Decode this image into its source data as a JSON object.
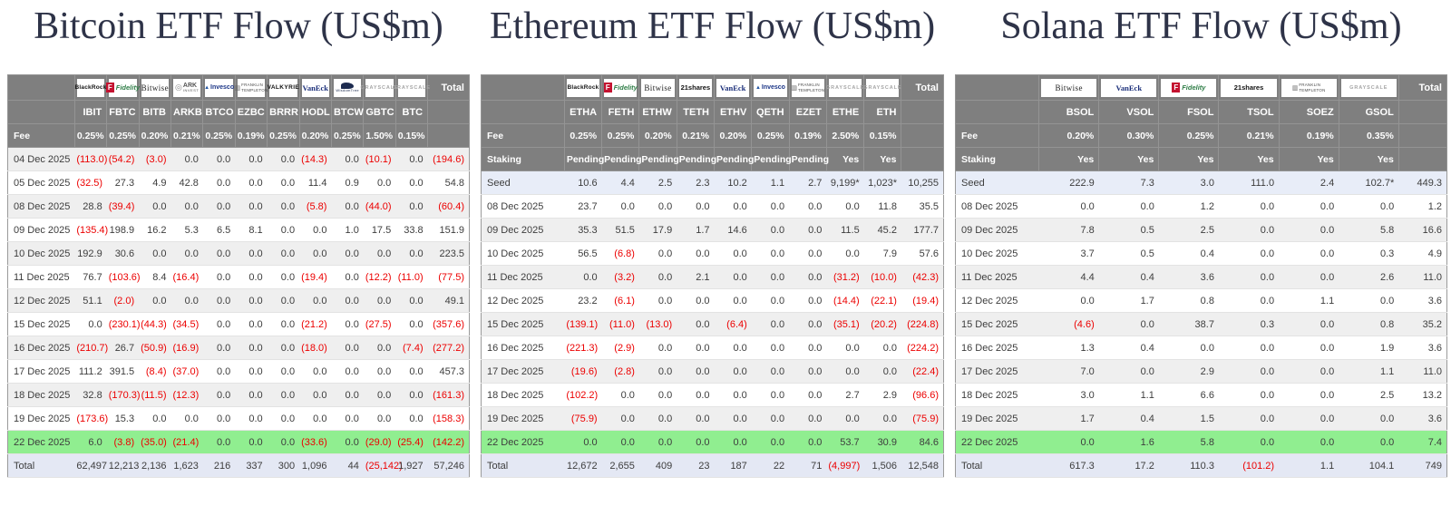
{
  "colors": {
    "title_text": "#2e3348",
    "header_bg": "#7f7f7f",
    "header_text": "#ffffff",
    "negative_value": "#ec0000",
    "highlight_row_green": "#90ee90",
    "seed_row_blue": "#e8edf8",
    "total_row_lavender": "#e4e8f4",
    "alt_row_gray": "#efefef"
  },
  "chart_data": [
    {
      "type": "table",
      "title": "Bitcoin ETF Flow (US$m)",
      "issuers": [
        {
          "key": "blackrock",
          "label": "BlackRock"
        },
        {
          "key": "fidelity",
          "label": "Fidelity"
        },
        {
          "key": "bitwise",
          "label": "Bitwise"
        },
        {
          "key": "ark",
          "label": "ARK Invest"
        },
        {
          "key": "invesco",
          "label": "Invesco"
        },
        {
          "key": "franklin",
          "label": "Franklin Templeton"
        },
        {
          "key": "valkyrie",
          "label": "VALKYRIE"
        },
        {
          "key": "vaneck",
          "label": "VanEck"
        },
        {
          "key": "wisdomtree",
          "label": "WisdomTree"
        },
        {
          "key": "grayscale",
          "label": "GRAYSCALE"
        },
        {
          "key": "grayscale",
          "label": "GRAYSCALE"
        }
      ],
      "total_label": "Total",
      "tickers": [
        "IBIT",
        "FBTC",
        "BITB",
        "ARKB",
        "BTCO",
        "EZBC",
        "BRRR",
        "HODL",
        "BTCW",
        "GBTC",
        "BTC"
      ],
      "fee_label": "Fee",
      "fees": [
        "0.25%",
        "0.25%",
        "0.20%",
        "0.21%",
        "0.25%",
        "0.19%",
        "0.25%",
        "0.20%",
        "0.25%",
        "1.50%",
        "0.15%"
      ],
      "rows": [
        {
          "label": "04 Dec 2025",
          "values": [
            "(113.0)",
            "(54.2)",
            "(3.0)",
            "0.0",
            "0.0",
            "0.0",
            "0.0",
            "(14.3)",
            "0.0",
            "(10.1)",
            "0.0"
          ],
          "total": "(194.6)"
        },
        {
          "label": "05 Dec 2025",
          "values": [
            "(32.5)",
            "27.3",
            "4.9",
            "42.8",
            "0.0",
            "0.0",
            "0.0",
            "11.4",
            "0.9",
            "0.0",
            "0.0"
          ],
          "total": "54.8"
        },
        {
          "label": "08 Dec 2025",
          "values": [
            "28.8",
            "(39.4)",
            "0.0",
            "0.0",
            "0.0",
            "0.0",
            "0.0",
            "(5.8)",
            "0.0",
            "(44.0)",
            "0.0"
          ],
          "total": "(60.4)"
        },
        {
          "label": "09 Dec 2025",
          "values": [
            "(135.4)",
            "198.9",
            "16.2",
            "5.3",
            "6.5",
            "8.1",
            "0.0",
            "0.0",
            "1.0",
            "17.5",
            "33.8"
          ],
          "total": "151.9"
        },
        {
          "label": "10 Dec 2025",
          "values": [
            "192.9",
            "30.6",
            "0.0",
            "0.0",
            "0.0",
            "0.0",
            "0.0",
            "0.0",
            "0.0",
            "0.0",
            "0.0"
          ],
          "total": "223.5"
        },
        {
          "label": "11 Dec 2025",
          "values": [
            "76.7",
            "(103.6)",
            "8.4",
            "(16.4)",
            "0.0",
            "0.0",
            "0.0",
            "(19.4)",
            "0.0",
            "(12.2)",
            "(11.0)"
          ],
          "total": "(77.5)"
        },
        {
          "label": "12 Dec 2025",
          "values": [
            "51.1",
            "(2.0)",
            "0.0",
            "0.0",
            "0.0",
            "0.0",
            "0.0",
            "0.0",
            "0.0",
            "0.0",
            "0.0"
          ],
          "total": "49.1"
        },
        {
          "label": "15 Dec 2025",
          "values": [
            "0.0",
            "(230.1)",
            "(44.3)",
            "(34.5)",
            "0.0",
            "0.0",
            "0.0",
            "(21.2)",
            "0.0",
            "(27.5)",
            "0.0"
          ],
          "total": "(357.6)"
        },
        {
          "label": "16 Dec 2025",
          "values": [
            "(210.7)",
            "26.7",
            "(50.9)",
            "(16.9)",
            "0.0",
            "0.0",
            "0.0",
            "(18.0)",
            "0.0",
            "0.0",
            "(7.4)"
          ],
          "total": "(277.2)"
        },
        {
          "label": "17 Dec 2025",
          "values": [
            "111.2",
            "391.5",
            "(8.4)",
            "(37.0)",
            "0.0",
            "0.0",
            "0.0",
            "0.0",
            "0.0",
            "0.0",
            "0.0"
          ],
          "total": "457.3"
        },
        {
          "label": "18 Dec 2025",
          "values": [
            "32.8",
            "(170.3)",
            "(11.5)",
            "(12.3)",
            "0.0",
            "0.0",
            "0.0",
            "0.0",
            "0.0",
            "0.0",
            "0.0"
          ],
          "total": "(161.3)"
        },
        {
          "label": "19 Dec 2025",
          "values": [
            "(173.6)",
            "15.3",
            "0.0",
            "0.0",
            "0.0",
            "0.0",
            "0.0",
            "0.0",
            "0.0",
            "0.0",
            "0.0"
          ],
          "total": "(158.3)"
        },
        {
          "label": "22 Dec 2025",
          "kind": "highlight",
          "values": [
            "6.0",
            "(3.8)",
            "(35.0)",
            "(21.4)",
            "0.0",
            "0.0",
            "0.0",
            "(33.6)",
            "0.0",
            "(29.0)",
            "(25.4)"
          ],
          "total": "(142.2)"
        }
      ],
      "total_row": {
        "label": "Total",
        "values": [
          "62,497",
          "12,213",
          "2,136",
          "1,623",
          "216",
          "337",
          "300",
          "1,096",
          "44",
          "(25,142)",
          "1,927"
        ],
        "total": "57,246"
      }
    },
    {
      "type": "table",
      "title": "Ethereum ETF Flow (US$m)",
      "issuers": [
        {
          "key": "blackrock",
          "label": "BlackRock"
        },
        {
          "key": "fidelity",
          "label": "Fidelity"
        },
        {
          "key": "bitwise",
          "label": "Bitwise"
        },
        {
          "key": "21shares",
          "label": "21shares"
        },
        {
          "key": "vaneck",
          "label": "VanEck"
        },
        {
          "key": "invesco",
          "label": "Invesco"
        },
        {
          "key": "franklin",
          "label": "Franklin Templeton"
        },
        {
          "key": "grayscale",
          "label": "GRAYSCALE"
        },
        {
          "key": "grayscale",
          "label": "GRAYSCALE"
        }
      ],
      "total_label": "Total",
      "tickers": [
        "ETHA",
        "FETH",
        "ETHW",
        "TETH",
        "ETHV",
        "QETH",
        "EZET",
        "ETHE",
        "ETH"
      ],
      "fee_label": "Fee",
      "fees": [
        "0.25%",
        "0.25%",
        "0.20%",
        "0.21%",
        "0.20%",
        "0.25%",
        "0.19%",
        "2.50%",
        "0.15%"
      ],
      "staking_label": "Staking",
      "staking": [
        "Pending",
        "Pending",
        "Pending",
        "Pending",
        "Pending",
        "Pending",
        "Pending",
        "Yes",
        "Yes"
      ],
      "rows": [
        {
          "label": "Seed",
          "kind": "seed",
          "values": [
            "10.6",
            "4.4",
            "2.5",
            "2.3",
            "10.2",
            "1.1",
            "2.7",
            "9,199*",
            "1,023*"
          ],
          "total": "10,255"
        },
        {
          "label": "08 Dec 2025",
          "values": [
            "23.7",
            "0.0",
            "0.0",
            "0.0",
            "0.0",
            "0.0",
            "0.0",
            "0.0",
            "11.8"
          ],
          "total": "35.5"
        },
        {
          "label": "09 Dec 2025",
          "values": [
            "35.3",
            "51.5",
            "17.9",
            "1.7",
            "14.6",
            "0.0",
            "0.0",
            "11.5",
            "45.2"
          ],
          "total": "177.7"
        },
        {
          "label": "10 Dec 2025",
          "values": [
            "56.5",
            "(6.8)",
            "0.0",
            "0.0",
            "0.0",
            "0.0",
            "0.0",
            "0.0",
            "7.9"
          ],
          "total": "57.6"
        },
        {
          "label": "11 Dec 2025",
          "values": [
            "0.0",
            "(3.2)",
            "0.0",
            "2.1",
            "0.0",
            "0.0",
            "0.0",
            "(31.2)",
            "(10.0)"
          ],
          "total": "(42.3)"
        },
        {
          "label": "12 Dec 2025",
          "values": [
            "23.2",
            "(6.1)",
            "0.0",
            "0.0",
            "0.0",
            "0.0",
            "0.0",
            "(14.4)",
            "(22.1)"
          ],
          "total": "(19.4)"
        },
        {
          "label": "15 Dec 2025",
          "values": [
            "(139.1)",
            "(11.0)",
            "(13.0)",
            "0.0",
            "(6.4)",
            "0.0",
            "0.0",
            "(35.1)",
            "(20.2)"
          ],
          "total": "(224.8)"
        },
        {
          "label": "16 Dec 2025",
          "values": [
            "(221.3)",
            "(2.9)",
            "0.0",
            "0.0",
            "0.0",
            "0.0",
            "0.0",
            "0.0",
            "0.0"
          ],
          "total": "(224.2)"
        },
        {
          "label": "17 Dec 2025",
          "values": [
            "(19.6)",
            "(2.8)",
            "0.0",
            "0.0",
            "0.0",
            "0.0",
            "0.0",
            "0.0",
            "0.0"
          ],
          "total": "(22.4)"
        },
        {
          "label": "18 Dec 2025",
          "values": [
            "(102.2)",
            "0.0",
            "0.0",
            "0.0",
            "0.0",
            "0.0",
            "0.0",
            "2.7",
            "2.9"
          ],
          "total": "(96.6)"
        },
        {
          "label": "19 Dec 2025",
          "values": [
            "(75.9)",
            "0.0",
            "0.0",
            "0.0",
            "0.0",
            "0.0",
            "0.0",
            "0.0",
            "0.0"
          ],
          "total": "(75.9)"
        },
        {
          "label": "22 Dec 2025",
          "kind": "highlight",
          "values": [
            "0.0",
            "0.0",
            "0.0",
            "0.0",
            "0.0",
            "0.0",
            "0.0",
            "53.7",
            "30.9"
          ],
          "total": "84.6"
        }
      ],
      "total_row": {
        "label": "Total",
        "values": [
          "12,672",
          "2,655",
          "409",
          "23",
          "187",
          "22",
          "71",
          "(4,997)",
          "1,506"
        ],
        "total": "12,548"
      }
    },
    {
      "type": "table",
      "title": "Solana ETF Flow (US$m)",
      "issuers": [
        {
          "key": "bitwise",
          "label": "Bitwise"
        },
        {
          "key": "vaneck",
          "label": "VanEck"
        },
        {
          "key": "fidelity",
          "label": "Fidelity"
        },
        {
          "key": "21shares",
          "label": "21shares"
        },
        {
          "key": "franklin",
          "label": "Franklin Templeton"
        },
        {
          "key": "grayscale",
          "label": "GRAYSCALE"
        }
      ],
      "total_label": "Total",
      "tickers": [
        "BSOL",
        "VSOL",
        "FSOL",
        "TSOL",
        "SOEZ",
        "GSOL"
      ],
      "fee_label": "Fee",
      "fees": [
        "0.20%",
        "0.30%",
        "0.25%",
        "0.21%",
        "0.19%",
        "0.35%"
      ],
      "staking_label": "Staking",
      "staking": [
        "Yes",
        "Yes",
        "Yes",
        "Yes",
        "Yes",
        "Yes"
      ],
      "rows": [
        {
          "label": "Seed",
          "kind": "seed",
          "values": [
            "222.9",
            "7.3",
            "3.0",
            "111.0",
            "2.4",
            "102.7*"
          ],
          "total": "449.3"
        },
        {
          "label": "08 Dec 2025",
          "values": [
            "0.0",
            "0.0",
            "1.2",
            "0.0",
            "0.0",
            "0.0"
          ],
          "total": "1.2"
        },
        {
          "label": "09 Dec 2025",
          "values": [
            "7.8",
            "0.5",
            "2.5",
            "0.0",
            "0.0",
            "5.8"
          ],
          "total": "16.6"
        },
        {
          "label": "10 Dec 2025",
          "values": [
            "3.7",
            "0.5",
            "0.4",
            "0.0",
            "0.0",
            "0.3"
          ],
          "total": "4.9"
        },
        {
          "label": "11 Dec 2025",
          "values": [
            "4.4",
            "0.4",
            "3.6",
            "0.0",
            "0.0",
            "2.6"
          ],
          "total": "11.0"
        },
        {
          "label": "12 Dec 2025",
          "values": [
            "0.0",
            "1.7",
            "0.8",
            "0.0",
            "1.1",
            "0.0"
          ],
          "total": "3.6"
        },
        {
          "label": "15 Dec 2025",
          "values": [
            "(4.6)",
            "0.0",
            "38.7",
            "0.3",
            "0.0",
            "0.8"
          ],
          "total": "35.2"
        },
        {
          "label": "16 Dec 2025",
          "values": [
            "1.3",
            "0.4",
            "0.0",
            "0.0",
            "0.0",
            "1.9"
          ],
          "total": "3.6"
        },
        {
          "label": "17 Dec 2025",
          "values": [
            "7.0",
            "0.0",
            "2.9",
            "0.0",
            "0.0",
            "1.1"
          ],
          "total": "11.0"
        },
        {
          "label": "18 Dec 2025",
          "values": [
            "3.0",
            "1.1",
            "6.6",
            "0.0",
            "0.0",
            "2.5"
          ],
          "total": "13.2"
        },
        {
          "label": "19 Dec 2025",
          "values": [
            "1.7",
            "0.4",
            "1.5",
            "0.0",
            "0.0",
            "0.0"
          ],
          "total": "3.6"
        },
        {
          "label": "22 Dec 2025",
          "kind": "highlight",
          "values": [
            "0.0",
            "1.6",
            "5.8",
            "0.0",
            "0.0",
            "0.0"
          ],
          "total": "7.4"
        }
      ],
      "total_row": {
        "label": "Total",
        "values": [
          "617.3",
          "17.2",
          "110.3",
          "(101.2)",
          "1.1",
          "104.1"
        ],
        "total": "749"
      }
    }
  ]
}
